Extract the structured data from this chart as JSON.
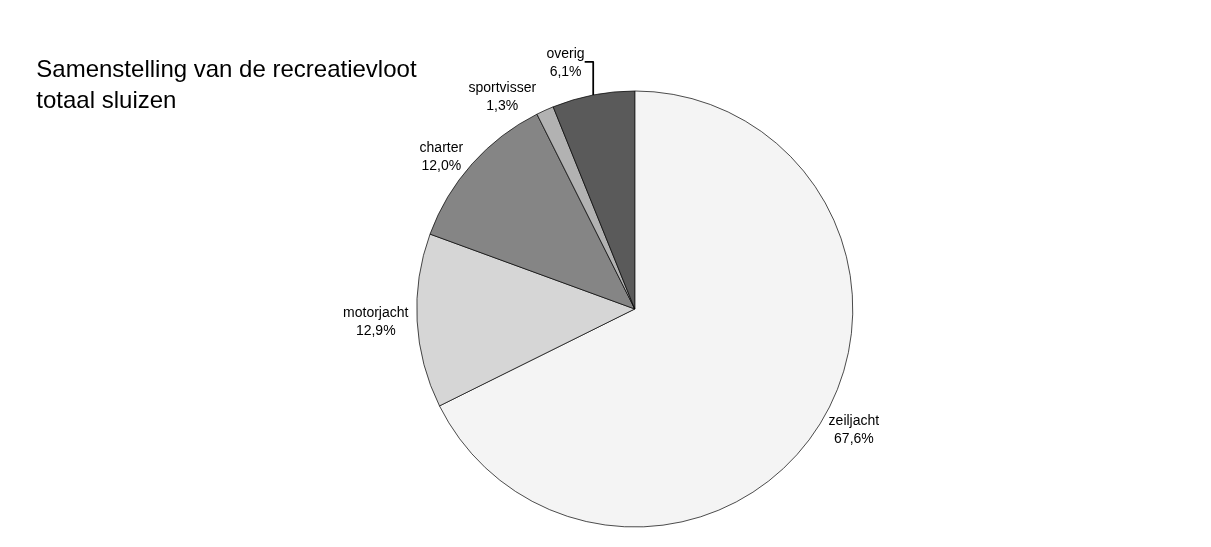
{
  "chart_data": {
    "type": "pie",
    "title": "Samenstelling van de recreatievloot\ntotaal sluizen",
    "categories": [
      "zeiljacht",
      "motorjacht",
      "charter",
      "sportvisser",
      "overig"
    ],
    "values": [
      67.6,
      12.9,
      12.0,
      1.3,
      6.1
    ],
    "value_labels": [
      "67,6%",
      "12,9%",
      "12,0%",
      "1,3%",
      "6,1%"
    ],
    "colors": [
      "#f4f4f4",
      "#d6d6d6",
      "#858585",
      "#b2b2b2",
      "#5a5a5a"
    ],
    "legend": false
  }
}
